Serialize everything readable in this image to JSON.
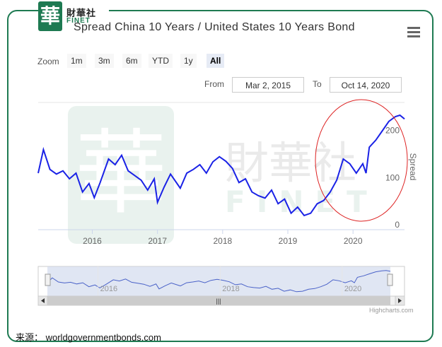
{
  "logo": {
    "glyph": "華",
    "cn": "財華社",
    "en": "FINET"
  },
  "title": "Spread China 10 Years / United States 10 Years Bond",
  "zoom": {
    "label": "Zoom",
    "buttons": [
      "1m",
      "3m",
      "6m",
      "YTD",
      "1y",
      "All"
    ],
    "active": "All"
  },
  "range": {
    "from_label": "From",
    "from": "Mar 2, 2015",
    "to_label": "To",
    "to": "Oct 14, 2020"
  },
  "watermark": {
    "glyph": "華",
    "cn": "財華社",
    "en": "FINET"
  },
  "credit": "Highcharts.com",
  "source": "来源： worldgovernmentbonds.com",
  "colors": {
    "line": "#1a22e6",
    "highlight": "#dd2222",
    "brand": "#1e7a52",
    "navigator_fill": "#ccd6eb"
  },
  "chart_data": {
    "type": "line",
    "ylabel": "Spread",
    "y_ticks": [
      0,
      100,
      200
    ],
    "ylim": [
      0,
      270
    ],
    "x_ticks": [
      "2016",
      "2017",
      "2018",
      "2019",
      "2020"
    ],
    "xlim": [
      2015.17,
      2020.79
    ],
    "grid": false,
    "annotations": [
      "red ellipse highlighting 2019.5 – 2020.8 rise"
    ],
    "series": [
      {
        "x": [
          2015.17,
          2015.25,
          2015.35,
          2015.45,
          2015.55,
          2015.65,
          2015.75,
          2015.85,
          2015.95,
          2016.03,
          2016.12,
          2016.25,
          2016.35,
          2016.45,
          2016.55,
          2016.65,
          2016.75,
          2016.85,
          2016.95,
          2017.0,
          2017.1,
          2017.2,
          2017.35,
          2017.45,
          2017.55,
          2017.65,
          2017.75,
          2017.85,
          2017.95,
          2018.05,
          2018.15,
          2018.25,
          2018.35,
          2018.45,
          2018.55,
          2018.65,
          2018.75,
          2018.85,
          2018.95,
          2019.05,
          2019.15,
          2019.25,
          2019.35,
          2019.45,
          2019.55,
          2019.65,
          2019.75,
          2019.85,
          2019.95,
          2020.05,
          2020.15,
          2020.2,
          2020.25,
          2020.35,
          2020.45,
          2020.55,
          2020.65,
          2020.72,
          2020.79
        ],
        "values": [
          120,
          170,
          128,
          118,
          125,
          108,
          120,
          80,
          98,
          68,
          100,
          150,
          138,
          158,
          125,
          115,
          105,
          84,
          108,
          58,
          90,
          118,
          88,
          120,
          128,
          138,
          120,
          144,
          155,
          145,
          130,
          100,
          108,
          80,
          72,
          67,
          84,
          55,
          65,
          35,
          48,
          30,
          35,
          55,
          62,
          80,
          105,
          150,
          140,
          120,
          140,
          120,
          175,
          190,
          210,
          230,
          240,
          243,
          235
        ]
      }
    ]
  }
}
